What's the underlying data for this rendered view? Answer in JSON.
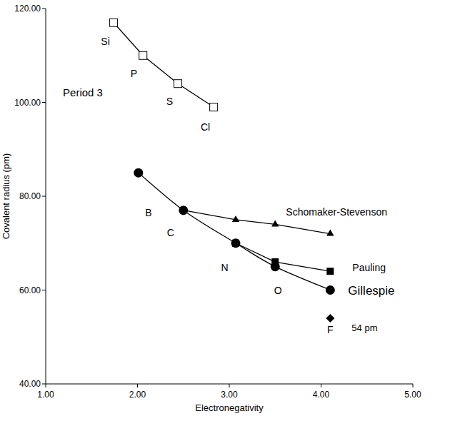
{
  "chart_data": {
    "type": "line",
    "x_label": "Electronegativity",
    "y_label": "Covalent radius (pm)",
    "xlim": [
      1,
      5
    ],
    "ylim": [
      40,
      120
    ],
    "xticks": [
      {
        "value": 1,
        "label": "1.00"
      },
      {
        "value": 2,
        "label": "2.00"
      },
      {
        "value": 3,
        "label": "3.00"
      },
      {
        "value": 4,
        "label": "4.00"
      },
      {
        "value": 5,
        "label": "5.00"
      }
    ],
    "yticks": [
      {
        "value": 40,
        "label": "40.00"
      },
      {
        "value": 60,
        "label": "60.00"
      },
      {
        "value": 80,
        "label": "80.00"
      },
      {
        "value": 100,
        "label": "100.00"
      },
      {
        "value": 120,
        "label": "120.00"
      }
    ],
    "grid": false,
    "series": [
      {
        "name": "Period 3",
        "x": [
          1.74,
          2.06,
          2.44,
          2.83
        ],
        "values": [
          117,
          110,
          104,
          99
        ],
        "color": "#000000",
        "marker": "square-open",
        "line_style": "solid"
      },
      {
        "name": "Schomaker-Stevenson",
        "x": [
          2.5,
          3.07,
          3.5,
          4.1
        ],
        "values": [
          77,
          75,
          74,
          72
        ],
        "color": "#000000",
        "marker": "triangle",
        "line_style": "solid"
      },
      {
        "name": "Pauling",
        "x": [
          3.07,
          3.5,
          4.1
        ],
        "values": [
          70,
          66,
          64
        ],
        "color": "#000000",
        "marker": "square",
        "line_style": "solid"
      },
      {
        "name": "Gillespie",
        "x": [
          2.01,
          2.5,
          3.07,
          3.5,
          4.1
        ],
        "values": [
          85,
          77,
          70,
          65,
          60
        ],
        "color": "#000000",
        "marker": "circle",
        "line_style": "smooth"
      },
      {
        "name": "54 pm",
        "x": [
          4.1
        ],
        "values": [
          54
        ],
        "color": "#000000",
        "marker": "diamond",
        "line_style": "none"
      }
    ],
    "annotations": [
      {
        "text": "Si",
        "x": 1.65,
        "y": 113.0
      },
      {
        "text": "P",
        "x": 1.96,
        "y": 106.2
      },
      {
        "text": "S",
        "x": 2.35,
        "y": 100.2
      },
      {
        "text": "Cl",
        "x": 2.74,
        "y": 94.8
      },
      {
        "text": "B",
        "x": 2.12,
        "y": 76.5
      },
      {
        "text": "C",
        "x": 2.36,
        "y": 72.3
      },
      {
        "text": "N",
        "x": 2.95,
        "y": 64.8
      },
      {
        "text": "O",
        "x": 3.53,
        "y": 59.9
      },
      {
        "text": "F",
        "x": 4.1,
        "y": 51.6
      }
    ]
  }
}
